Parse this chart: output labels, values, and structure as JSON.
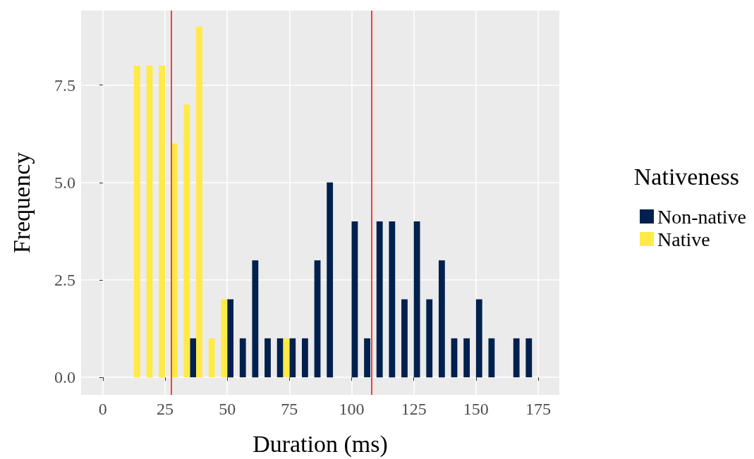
{
  "chart_data": {
    "type": "histogram",
    "xlabel": "Duration (ms)",
    "ylabel": "Frequency",
    "legend_title": "Nativeness",
    "bins": [
      -2.5,
      2.5,
      7.5,
      12.5,
      17.5,
      22.5,
      27.5,
      32.5,
      37.5,
      42.5,
      47.5,
      52.5,
      57.5,
      62.5,
      67.5,
      72.5,
      77.5,
      82.5,
      87.5,
      92.5,
      97.5,
      102.5,
      107.5,
      112.5,
      117.5,
      122.5,
      127.5,
      132.5,
      137.5,
      142.5,
      147.5,
      152.5,
      157.5,
      162.5,
      167.5,
      172.5
    ],
    "series": [
      {
        "name": "Non-native",
        "color": "#00204d",
        "values": [
          0,
          0,
          0,
          0,
          0,
          0,
          0,
          1,
          0,
          0,
          2,
          1,
          3,
          1,
          1,
          1,
          1,
          3,
          5,
          0,
          4,
          1,
          4,
          4,
          2,
          4,
          2,
          3,
          1,
          1,
          2,
          1,
          0,
          1,
          1
        ]
      },
      {
        "name": "Native",
        "color": "#ffea46",
        "values": [
          0,
          0,
          0,
          8,
          8,
          8,
          6,
          7,
          9,
          1,
          2,
          0,
          0,
          0,
          0,
          1,
          0,
          0,
          0,
          0,
          0,
          0,
          0,
          0,
          0,
          0,
          0,
          0,
          0,
          0,
          0,
          0,
          0,
          0,
          0
        ]
      }
    ],
    "xlim": [
      -8.75,
      183.5
    ],
    "xticks": [
      0,
      25,
      50,
      75,
      100,
      125,
      150,
      175
    ],
    "ylim": [
      -0.45,
      9.41
    ],
    "yticks": [
      {
        "value": 0,
        "label": "0.0"
      },
      {
        "value": 2.5,
        "label": "2.5"
      },
      {
        "value": 5,
        "label": "5.0"
      },
      {
        "value": 7.5,
        "label": "7.5"
      }
    ],
    "ref_lines": [
      {
        "axis": "x",
        "value": 27.5,
        "color": "#ff0000"
      },
      {
        "axis": "x",
        "value": 108,
        "color": "#ff0000"
      }
    ],
    "grid": true,
    "legend": "right"
  }
}
